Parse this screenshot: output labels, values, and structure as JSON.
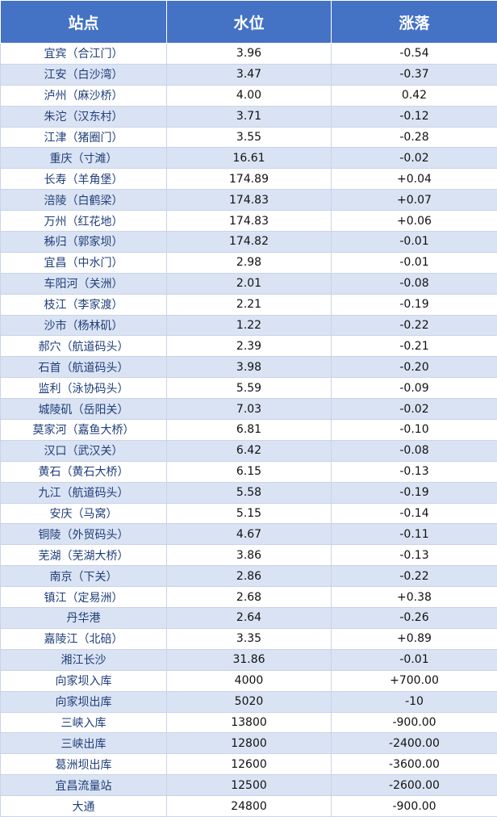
{
  "table": {
    "header": [
      "站点",
      "水位",
      "涨落"
    ],
    "rows": [
      [
        "宜宾（合江门）",
        "3.96",
        "-0.54"
      ],
      [
        "江安（白沙湾）",
        "3.47",
        "-0.37"
      ],
      [
        "泸州（麻沙桥）",
        "4.00",
        "0.42"
      ],
      [
        "朱沱（汉东村）",
        "3.71",
        "-0.12"
      ],
      [
        "江津（猪圈门）",
        "3.55",
        "-0.28"
      ],
      [
        "重庆（寸滩）",
        "16.61",
        "-0.02"
      ],
      [
        "长寿（羊角堡）",
        "174.89",
        "+0.04"
      ],
      [
        "涪陵（白鹤梁）",
        "174.83",
        "+0.07"
      ],
      [
        "万州（红花地）",
        "174.83",
        "+0.06"
      ],
      [
        "秭归（郭家坝）",
        "174.82",
        "-0.01"
      ],
      [
        "宜昌（中水门）",
        "2.98",
        "-0.01"
      ],
      [
        "车阳河（关洲）",
        "2.01",
        "-0.08"
      ],
      [
        "枝江（李家渡）",
        "2.21",
        "-0.19"
      ],
      [
        "沙市（杨林矶）",
        "1.22",
        "-0.22"
      ],
      [
        "郝穴（航道码头）",
        "2.39",
        "-0.21"
      ],
      [
        "石首（航道码头）",
        "3.98",
        "-0.20"
      ],
      [
        "监利（泳协码头）",
        "5.59",
        "-0.09"
      ],
      [
        "城陵矶（岳阳关）",
        "7.03",
        "-0.02"
      ],
      [
        "莫家河（嘉鱼大桥）",
        "6.81",
        "-0.10"
      ],
      [
        "汉口（武汉关）",
        "6.42",
        "-0.08"
      ],
      [
        "黄石（黄石大桥）",
        "6.15",
        "-0.13"
      ],
      [
        "九江（航道码头）",
        "5.58",
        "-0.19"
      ],
      [
        "安庆（马窝）",
        "5.15",
        "-0.14"
      ],
      [
        "铜陵（外贸码头）",
        "4.67",
        "-0.11"
      ],
      [
        "芜湖（芜湖大桥）",
        "3.86",
        "-0.13"
      ],
      [
        "南京（下关）",
        "2.86",
        "-0.22"
      ],
      [
        "镇江（定易洲）",
        "2.68",
        "+0.38"
      ],
      [
        "丹华港",
        "2.64",
        "-0.26"
      ],
      [
        "嘉陵江（北碚）",
        "3.35",
        "+0.89"
      ],
      [
        "湘江长沙",
        "31.86",
        "-0.01"
      ],
      [
        "向家坝入库",
        "4000",
        "+700.00"
      ],
      [
        "向家坝出库",
        "5020",
        "-10"
      ],
      [
        "三峡入库",
        "13800",
        "-900.00"
      ],
      [
        "三峡出库",
        "12800",
        "-2400.00"
      ],
      [
        "葛洲坝出库",
        "12600",
        "-3600.00"
      ],
      [
        "宜昌流量站",
        "12500",
        "-2600.00"
      ],
      [
        "大通",
        "24800",
        "-900.00"
      ]
    ]
  }
}
